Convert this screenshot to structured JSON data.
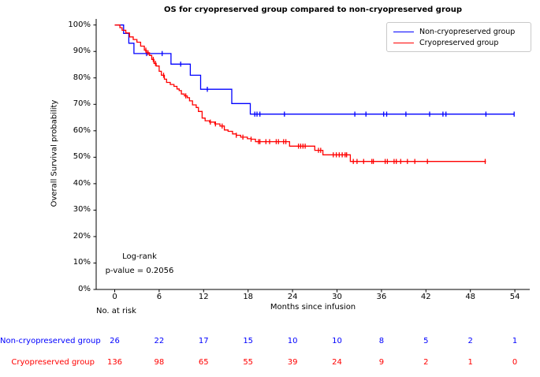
{
  "title": "OS for cryopreserved group compared to non-cryopreserved group",
  "axes": {
    "x_label": "Months since infusion",
    "y_label": "Overall Survival probability",
    "x_tick_months": [
      0,
      6,
      12,
      18,
      24,
      30,
      36,
      42,
      48,
      54
    ],
    "x_tick_labels": [
      "0",
      "6",
      "12",
      "18",
      "24",
      "30",
      "36",
      "42",
      "48",
      "54"
    ],
    "y_tick_percents": [
      0,
      10,
      20,
      30,
      40,
      50,
      60,
      70,
      80,
      90,
      100
    ],
    "y_tick_labels": [
      "0%",
      "10%",
      "20%",
      "30%",
      "40%",
      "50%",
      "60%",
      "70%",
      "80%",
      "90%",
      "100%"
    ]
  },
  "legend": [
    {
      "label": "Non-cryopreserved group",
      "color": "#0000ff"
    },
    {
      "label": "Cryopreserved group",
      "color": "#ff0000"
    }
  ],
  "annotation": {
    "line1": "Log-rank",
    "line2": "p-value = 0.2056"
  },
  "risk_table": {
    "header": "No. at risk",
    "tick_months": [
      0,
      6,
      12,
      18,
      24,
      30,
      36,
      42,
      48,
      54
    ],
    "rows": [
      {
        "label": "Non-cryopreserved group",
        "color": "#0000ff",
        "counts": [
          "26",
          "22",
          "17",
          "15",
          "10",
          "10",
          "8",
          "5",
          "2",
          "1"
        ]
      },
      {
        "label": "Cryopreserved group",
        "color": "#ff0000",
        "counts": [
          "136",
          "98",
          "65",
          "55",
          "39",
          "24",
          "9",
          "2",
          "1",
          "0"
        ]
      }
    ]
  },
  "chart_data": {
    "type": "line",
    "subtype": "kaplan-meier-step",
    "title": "OS for cryopreserved group compared to non-cryopreserved group",
    "xlabel": "Months since infusion",
    "ylabel": "Overall Survival probability",
    "xlim_months": [
      -2.5,
      56.5
    ],
    "ylim_percent": [
      0,
      100
    ],
    "grid": false,
    "legend_position": "upper right",
    "statistics": {
      "test": "Log-rank",
      "p_value": "0.2056"
    },
    "series": [
      {
        "name": "Non-cryopreserved group",
        "color": "#0000ff",
        "steps_month_percent": [
          [
            0,
            100
          ],
          [
            1.2,
            96.8
          ],
          [
            1.9,
            93.1
          ],
          [
            2.6,
            89.2
          ],
          [
            7.6,
            85.2
          ],
          [
            10.2,
            81.0
          ],
          [
            11.6,
            75.7
          ],
          [
            15.8,
            70.3
          ],
          [
            18.3,
            66.3
          ]
        ],
        "end_month": 53.9,
        "censor_ticks_months": [
          4.3,
          6.4,
          8.9,
          12.5,
          18.9,
          19.2,
          19.6,
          22.9,
          32.4,
          33.9,
          36.3,
          36.7,
          39.3,
          42.5,
          44.3,
          44.7,
          50.1,
          53.9
        ]
      },
      {
        "name": "Cryopreserved group",
        "color": "#ff0000",
        "steps_month_percent": [
          [
            0,
            100
          ],
          [
            0.7,
            99.0
          ],
          [
            1.0,
            98.0
          ],
          [
            1.5,
            97.0
          ],
          [
            2.0,
            95.5
          ],
          [
            2.5,
            94.5
          ],
          [
            3.0,
            93.5
          ],
          [
            3.5,
            92.0
          ],
          [
            4.0,
            90.5
          ],
          [
            4.3,
            89.5
          ],
          [
            4.7,
            88.5
          ],
          [
            5.0,
            87.0
          ],
          [
            5.3,
            85.5
          ],
          [
            5.6,
            84.5
          ],
          [
            6.0,
            82.5
          ],
          [
            6.3,
            81.0
          ],
          [
            6.7,
            79.5
          ],
          [
            7.0,
            78.3
          ],
          [
            7.5,
            77.5
          ],
          [
            8.0,
            76.8
          ],
          [
            8.4,
            75.8
          ],
          [
            8.7,
            75.2
          ],
          [
            9.0,
            73.9
          ],
          [
            9.4,
            73.2
          ],
          [
            9.8,
            72.5
          ],
          [
            10.1,
            71.3
          ],
          [
            10.5,
            69.8
          ],
          [
            11.0,
            68.8
          ],
          [
            11.3,
            67.3
          ],
          [
            11.8,
            64.8
          ],
          [
            12.2,
            63.8
          ],
          [
            12.8,
            63.3
          ],
          [
            13.5,
            62.6
          ],
          [
            14.2,
            61.8
          ],
          [
            14.8,
            60.3
          ],
          [
            15.3,
            59.8
          ],
          [
            15.9,
            58.8
          ],
          [
            16.4,
            58.3
          ],
          [
            17.0,
            57.6
          ],
          [
            17.9,
            57.0
          ],
          [
            18.4,
            56.8
          ],
          [
            19.0,
            55.9
          ],
          [
            23.6,
            54.2
          ],
          [
            27.0,
            52.6
          ],
          [
            28.1,
            50.9
          ],
          [
            31.8,
            48.4
          ]
        ],
        "end_month": 50.1,
        "censor_ticks_months": [
          4.2,
          4.5,
          5.2,
          5.5,
          6.6,
          9.6,
          12.9,
          13.6,
          14.5,
          16.4,
          17.3,
          18.4,
          19.4,
          19.6,
          20.4,
          20.9,
          21.8,
          22.1,
          22.8,
          23.1,
          24.8,
          25.1,
          25.4,
          25.7,
          27.5,
          27.8,
          29.5,
          29.9,
          30.3,
          30.7,
          31.1,
          31.3,
          32.2,
          32.7,
          33.6,
          34.7,
          34.9,
          36.5,
          36.8,
          37.7,
          38.0,
          38.6,
          39.5,
          40.5,
          42.2,
          50.0
        ]
      }
    ],
    "at_risk_table": {
      "header": "No. at risk",
      "months": [
        0,
        6,
        12,
        18,
        24,
        30,
        36,
        42,
        48,
        54
      ],
      "Non-cryopreserved group": [
        26,
        22,
        17,
        15,
        10,
        10,
        8,
        5,
        2,
        1
      ],
      "Cryopreserved group": [
        136,
        98,
        65,
        55,
        39,
        24,
        9,
        2,
        1,
        0
      ]
    }
  }
}
